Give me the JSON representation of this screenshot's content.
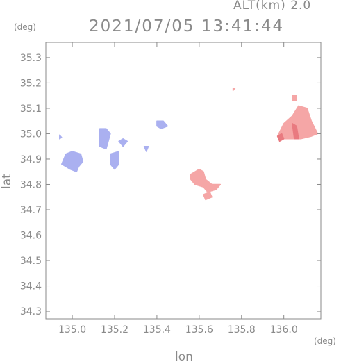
{
  "header": {
    "altitude_label": "ALT(km) 2.0",
    "timestamp": "2021/07/05 13:41:44"
  },
  "chart_data": {
    "type": "heatmap",
    "title": "2021/07/05 13:41:44",
    "xlabel": "lon",
    "ylabel": "lat",
    "x_unit": "(deg)",
    "y_unit": "(deg)",
    "xlim": [
      134.875,
      136.175
    ],
    "ylim": [
      34.27,
      35.36
    ],
    "x_ticks": [
      135.0,
      135.2,
      135.4,
      135.6,
      135.8,
      136.0
    ],
    "x_tick_labels": [
      "135.0",
      "135.2",
      "135.4",
      "135.6",
      "135.8",
      "136.0"
    ],
    "y_ticks": [
      34.3,
      34.4,
      34.5,
      34.6,
      34.7,
      34.8,
      34.9,
      35.0,
      35.1,
      35.2,
      35.3
    ],
    "y_tick_labels": [
      "34.3",
      "34.4",
      "34.5",
      "34.6",
      "34.7",
      "34.8",
      "34.9",
      "35.0",
      "35.1",
      "35.2",
      "35.3"
    ],
    "grid": false,
    "colors": {
      "negative": "#aab0f0",
      "positive": "#f5a6a6",
      "positive_strong": "#e97a80"
    },
    "echoes": [
      {
        "sign": "negative",
        "points": [
          [
            134.95,
            34.88
          ],
          [
            134.97,
            34.92
          ],
          [
            135.0,
            34.93
          ],
          [
            135.04,
            34.92
          ],
          [
            135.05,
            34.89
          ],
          [
            135.03,
            34.87
          ],
          [
            135.02,
            34.85
          ],
          [
            134.99,
            34.86
          ],
          [
            134.97,
            34.87
          ]
        ]
      },
      {
        "sign": "negative",
        "points": [
          [
            134.94,
            34.995
          ],
          [
            134.95,
            34.985
          ],
          [
            134.94,
            34.98
          ]
        ]
      },
      {
        "sign": "negative",
        "points": [
          [
            135.13,
            35.02
          ],
          [
            135.16,
            35.02
          ],
          [
            135.18,
            35.0
          ],
          [
            135.17,
            34.97
          ],
          [
            135.16,
            34.94
          ],
          [
            135.13,
            34.95
          ],
          [
            135.13,
            34.98
          ]
        ]
      },
      {
        "sign": "negative",
        "points": [
          [
            135.18,
            34.92
          ],
          [
            135.22,
            34.93
          ],
          [
            135.22,
            34.88
          ],
          [
            135.2,
            34.86
          ],
          [
            135.18,
            34.88
          ]
        ]
      },
      {
        "sign": "negative",
        "points": [
          [
            135.22,
            34.97
          ],
          [
            135.24,
            34.98
          ],
          [
            135.26,
            34.97
          ],
          [
            135.24,
            34.95
          ]
        ]
      },
      {
        "sign": "negative",
        "points": [
          [
            135.34,
            34.95
          ],
          [
            135.36,
            34.95
          ],
          [
            135.35,
            34.93
          ]
        ]
      },
      {
        "sign": "negative",
        "points": [
          [
            135.4,
            35.05
          ],
          [
            135.43,
            35.05
          ],
          [
            135.45,
            35.03
          ],
          [
            135.42,
            35.02
          ],
          [
            135.4,
            35.03
          ]
        ]
      },
      {
        "sign": "positive",
        "points": [
          [
            135.56,
            34.84
          ],
          [
            135.6,
            34.86
          ],
          [
            135.62,
            34.85
          ],
          [
            135.63,
            34.82
          ],
          [
            135.66,
            34.8
          ],
          [
            135.7,
            34.8
          ],
          [
            135.68,
            34.78
          ],
          [
            135.64,
            34.77
          ],
          [
            135.62,
            34.79
          ],
          [
            135.58,
            34.8
          ],
          [
            135.56,
            34.82
          ]
        ]
      },
      {
        "sign": "positive",
        "points": [
          [
            135.62,
            34.76
          ],
          [
            135.65,
            34.77
          ],
          [
            135.66,
            34.75
          ],
          [
            135.63,
            34.74
          ]
        ]
      },
      {
        "sign": "positive",
        "points": [
          [
            135.76,
            35.18
          ],
          [
            135.77,
            35.18
          ],
          [
            135.76,
            35.17
          ]
        ]
      },
      {
        "sign": "positive",
        "points": [
          [
            135.97,
            34.99
          ],
          [
            136.0,
            35.04
          ],
          [
            136.04,
            35.07
          ],
          [
            136.07,
            35.11
          ],
          [
            136.11,
            35.1
          ],
          [
            136.13,
            35.05
          ],
          [
            136.16,
            35.0
          ],
          [
            136.13,
            34.99
          ],
          [
            136.08,
            34.98
          ],
          [
            136.02,
            34.98
          ],
          [
            135.98,
            34.98
          ]
        ]
      },
      {
        "sign": "positive",
        "points": [
          [
            136.04,
            35.15
          ],
          [
            136.06,
            35.15
          ],
          [
            136.06,
            35.13
          ],
          [
            136.04,
            35.13
          ]
        ]
      },
      {
        "sign": "positive_strong",
        "points": [
          [
            135.97,
            34.99
          ],
          [
            135.99,
            35.0
          ],
          [
            136.0,
            34.98
          ],
          [
            135.98,
            34.97
          ]
        ]
      },
      {
        "sign": "positive_strong",
        "points": [
          [
            136.04,
            35.04
          ],
          [
            136.06,
            35.03
          ],
          [
            136.07,
            34.98
          ],
          [
            136.05,
            34.98
          ]
        ]
      }
    ]
  }
}
